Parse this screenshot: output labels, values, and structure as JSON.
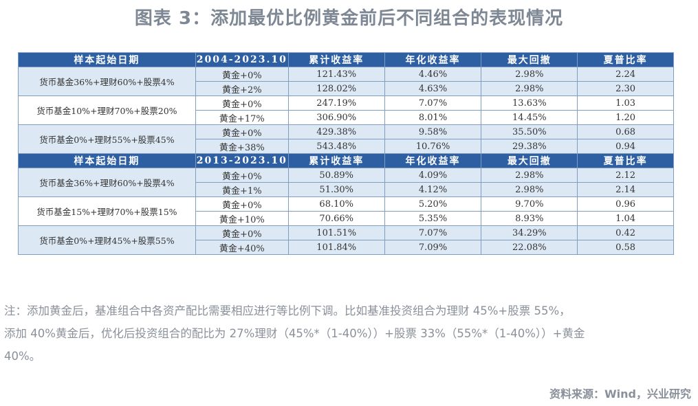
{
  "title": "图表 3：添加最优比例黄金前后不同组合的表现情况",
  "columns": [
    "样本起始日期",
    "",
    "累计收益率",
    "年化收益率",
    "最大回撤",
    "夏普比率"
  ],
  "sections": [
    {
      "period": "2004-2023.10",
      "groups": [
        {
          "combo": "货币基金36%+理财60%+股票4%",
          "rows": [
            {
              "gold": "黄金+0%",
              "cum": "121.43%",
              "ann": "4.46%",
              "mdd": "2.98%",
              "sharpe": "2.24"
            },
            {
              "gold": "黄金+2%",
              "cum": "128.02%",
              "ann": "4.63%",
              "mdd": "2.98%",
              "sharpe": "2.30"
            }
          ]
        },
        {
          "combo": "货币基金10%+理财70%+股票20%",
          "rows": [
            {
              "gold": "黄金+0%",
              "cum": "247.19%",
              "ann": "7.07%",
              "mdd": "13.63%",
              "sharpe": "1.03"
            },
            {
              "gold": "黄金+17%",
              "cum": "306.90%",
              "ann": "8.01%",
              "mdd": "14.45%",
              "sharpe": "1.20"
            }
          ]
        },
        {
          "combo": "货币基金0%+理财55%+股票45%",
          "rows": [
            {
              "gold": "黄金+0%",
              "cum": "429.38%",
              "ann": "9.58%",
              "mdd": "35.50%",
              "sharpe": "0.68"
            },
            {
              "gold": "黄金+38%",
              "cum": "543.48%",
              "ann": "10.76%",
              "mdd": "29.38%",
              "sharpe": "0.94"
            }
          ]
        }
      ]
    },
    {
      "period": "2013-2023.10",
      "groups": [
        {
          "combo": "货币基金36%+理财60%+股票4%",
          "rows": [
            {
              "gold": "黄金+0%",
              "cum": "50.89%",
              "ann": "4.09%",
              "mdd": "2.98%",
              "sharpe": "2.12"
            },
            {
              "gold": "黄金+1%",
              "cum": "51.30%",
              "ann": "4.12%",
              "mdd": "2.98%",
              "sharpe": "2.14"
            }
          ]
        },
        {
          "combo": "货币基金15%+理财70%+股票15%",
          "rows": [
            {
              "gold": "黄金+0%",
              "cum": "68.10%",
              "ann": "5.20%",
              "mdd": "9.70%",
              "sharpe": "0.96"
            },
            {
              "gold": "黄金+10%",
              "cum": "70.66%",
              "ann": "5.35%",
              "mdd": "8.93%",
              "sharpe": "1.04"
            }
          ]
        },
        {
          "combo": "货币基金0%+理财45%+股票55%",
          "rows": [
            {
              "gold": "黄金+0%",
              "cum": "101.51%",
              "ann": "7.07%",
              "mdd": "34.29%",
              "sharpe": "0.42"
            },
            {
              "gold": "黄金+40%",
              "cum": "101.84%",
              "ann": "7.09%",
              "mdd": "22.08%",
              "sharpe": "0.58"
            }
          ]
        }
      ]
    }
  ],
  "note_lines": [
    "注：添加黄金后，基准组合中各资产配比需要相应进行等比例下调。比如基准投资组合为理财 45%+股票 55%，",
    "添加 40%黄金后，优化后投资组合的配比为 27%理财（45%*（1-40%））+股票 33%（55%*（1-40%））+黄金",
    "40%。"
  ],
  "source": "资料来源：Wind，兴业研究"
}
